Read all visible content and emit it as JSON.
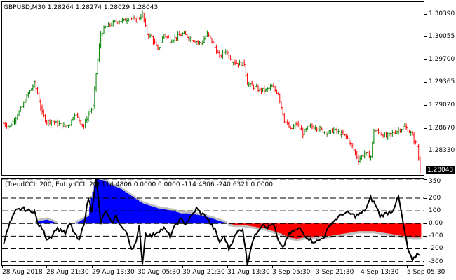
{
  "main": {
    "symbol_label": "GBPUSD,M30",
    "ohlc": "1.28264 1.28274 1.28029 1.28043",
    "current_price": "1.28043",
    "bull_color": "#008000",
    "bear_color": "#ff0000",
    "price_labels": [
      "1.30390",
      "1.30055",
      "1.29700",
      "1.29365",
      "1.29020",
      "1.28670",
      "1.28330"
    ],
    "price_levels": [
      1.3039,
      1.30055,
      1.297,
      1.29365,
      1.2902,
      1.2867,
      1.2833
    ],
    "ylim": [
      1.2797,
      1.3058
    ]
  },
  "indicator": {
    "label": "(TrendCCI: 200, Entry CCI: 20)  114.4806 0.0000 0.0000 -114.4806 -240.6321 0.0000",
    "levels_text": [
      "350",
      "200",
      "100",
      "0.00",
      "-100",
      "-200",
      "-300"
    ],
    "levels": [
      350,
      200,
      100,
      0,
      -100,
      -200,
      -300
    ],
    "ylim": [
      -330,
      355
    ],
    "up_color": "#0000ff",
    "down_color": "#ff0000",
    "line_color": "#000000"
  },
  "time_axis": {
    "labels": [
      "28 Aug 2018",
      "28 Aug 21:30",
      "29 Aug 13:30",
      "30 Aug 05:30",
      "30 Aug 21:30",
      "31 Aug 13:30",
      "3 Sep 05:30",
      "3 Sep 21:30",
      "4 Sep 13:30",
      "5 Sep 05:30"
    ]
  },
  "chart_data": {
    "type": "bar",
    "symbol": "GBPUSD",
    "timeframe": "M30",
    "x": [
      "28 Aug 2018",
      "28 Aug 21:30",
      "29 Aug 13:30",
      "30 Aug 05:30",
      "30 Aug 21:30",
      "31 Aug 13:30",
      "3 Sep 05:30",
      "3 Sep 21:30",
      "4 Sep 13:30",
      "5 Sep 05:30"
    ],
    "price_anchor_points": [
      [
        0,
        1.2875
      ],
      [
        4,
        1.287
      ],
      [
        8,
        1.2885
      ],
      [
        12,
        1.29
      ],
      [
        16,
        1.292
      ],
      [
        20,
        1.2935
      ],
      [
        22,
        1.292
      ],
      [
        25,
        1.289
      ],
      [
        28,
        1.2877
      ],
      [
        31,
        1.288
      ],
      [
        34,
        1.2875
      ],
      [
        37,
        1.2873
      ],
      [
        40,
        1.287
      ],
      [
        43,
        1.2875
      ],
      [
        46,
        1.289
      ],
      [
        49,
        1.288
      ],
      [
        52,
        1.287
      ],
      [
        55,
        1.289
      ],
      [
        58,
        1.29
      ],
      [
        60,
        1.295
      ],
      [
        63,
        1.301
      ],
      [
        66,
        1.302
      ],
      [
        70,
        1.3025
      ],
      [
        74,
        1.303
      ],
      [
        78,
        1.303
      ],
      [
        82,
        1.3035
      ],
      [
        86,
        1.303
      ],
      [
        90,
        1.304
      ],
      [
        93,
        1.301
      ],
      [
        96,
        1.3005
      ],
      [
        100,
        1.2985
      ],
      [
        104,
        1.301
      ],
      [
        108,
        1.3
      ],
      [
        112,
        1.3005
      ],
      [
        116,
        1.301
      ],
      [
        120,
        1.3005
      ],
      [
        124,
        1.3
      ],
      [
        128,
        1.2995
      ],
      [
        132,
        1.301
      ],
      [
        136,
        1.2995
      ],
      [
        140,
        1.2975
      ],
      [
        144,
        1.2985
      ],
      [
        148,
        1.297
      ],
      [
        152,
        1.2965
      ],
      [
        156,
        1.2965
      ],
      [
        158,
        1.2935
      ],
      [
        162,
        1.293
      ],
      [
        166,
        1.2925
      ],
      [
        170,
        1.2925
      ],
      [
        174,
        1.293
      ],
      [
        178,
        1.292
      ],
      [
        182,
        1.288
      ],
      [
        186,
        1.2865
      ],
      [
        190,
        1.2875
      ],
      [
        194,
        1.286
      ],
      [
        198,
        1.287
      ],
      [
        202,
        1.287
      ],
      [
        206,
        1.2865
      ],
      [
        210,
        1.286
      ],
      [
        214,
        1.2865
      ],
      [
        218,
        1.286
      ],
      [
        222,
        1.2855
      ],
      [
        226,
        1.284
      ],
      [
        230,
        1.282
      ],
      [
        234,
        1.283
      ],
      [
        238,
        1.2825
      ],
      [
        240,
        1.2865
      ],
      [
        244,
        1.286
      ],
      [
        248,
        1.2855
      ],
      [
        252,
        1.286
      ],
      [
        256,
        1.2865
      ],
      [
        260,
        1.287
      ],
      [
        264,
        1.286
      ],
      [
        268,
        1.284
      ],
      [
        270,
        1.2804
      ]
    ],
    "cci_anchor_points": [
      [
        0,
        -150
      ],
      [
        4,
        0
      ],
      [
        8,
        100
      ],
      [
        12,
        120
      ],
      [
        16,
        100
      ],
      [
        20,
        100
      ],
      [
        22,
        0
      ],
      [
        25,
        -40
      ],
      [
        28,
        -120
      ],
      [
        31,
        -100
      ],
      [
        34,
        -40
      ],
      [
        37,
        -50
      ],
      [
        40,
        -80
      ],
      [
        43,
        0
      ],
      [
        46,
        -80
      ],
      [
        49,
        -140
      ],
      [
        52,
        0
      ],
      [
        55,
        200
      ],
      [
        57,
        100
      ],
      [
        60,
        360
      ],
      [
        63,
        0
      ],
      [
        66,
        100
      ],
      [
        70,
        0
      ],
      [
        73,
        60
      ],
      [
        76,
        -20
      ],
      [
        80,
        -80
      ],
      [
        83,
        -200
      ],
      [
        86,
        -150
      ],
      [
        88,
        -20
      ],
      [
        90,
        -320
      ],
      [
        92,
        -80
      ],
      [
        96,
        -100
      ],
      [
        100,
        -60
      ],
      [
        104,
        -40
      ],
      [
        108,
        -100
      ],
      [
        112,
        0
      ],
      [
        115,
        30
      ],
      [
        118,
        0
      ],
      [
        122,
        60
      ],
      [
        125,
        120
      ],
      [
        128,
        80
      ],
      [
        131,
        60
      ],
      [
        134,
        0
      ],
      [
        137,
        -50
      ],
      [
        140,
        -150
      ],
      [
        143,
        -100
      ],
      [
        146,
        -200
      ],
      [
        149,
        -120
      ],
      [
        152,
        -60
      ],
      [
        155,
        -40
      ],
      [
        158,
        -320
      ],
      [
        161,
        -150
      ],
      [
        165,
        -50
      ],
      [
        168,
        0
      ],
      [
        171,
        -30
      ],
      [
        175,
        0
      ],
      [
        178,
        -140
      ],
      [
        181,
        -200
      ],
      [
        184,
        -100
      ],
      [
        188,
        -60
      ],
      [
        192,
        -40
      ],
      [
        196,
        -100
      ],
      [
        200,
        -140
      ],
      [
        204,
        -140
      ],
      [
        208,
        -100
      ],
      [
        212,
        0
      ],
      [
        216,
        40
      ],
      [
        220,
        80
      ],
      [
        224,
        80
      ],
      [
        228,
        60
      ],
      [
        232,
        80
      ],
      [
        235,
        120
      ],
      [
        238,
        200
      ],
      [
        241,
        150
      ],
      [
        244,
        60
      ],
      [
        248,
        80
      ],
      [
        252,
        100
      ],
      [
        256,
        210
      ],
      [
        259,
        0
      ],
      [
        262,
        -200
      ],
      [
        265,
        -300
      ],
      [
        268,
        -240
      ],
      [
        270,
        -240
      ]
    ],
    "cci_fill_anchor_points": [
      [
        0,
        0
      ],
      [
        20,
        0
      ],
      [
        23,
        20
      ],
      [
        28,
        30
      ],
      [
        35,
        0
      ],
      [
        46,
        0
      ],
      [
        50,
        20
      ],
      [
        55,
        60
      ],
      [
        57,
        200
      ],
      [
        60,
        350
      ],
      [
        65,
        340
      ],
      [
        70,
        300
      ],
      [
        75,
        280
      ],
      [
        80,
        240
      ],
      [
        85,
        200
      ],
      [
        90,
        160
      ],
      [
        95,
        140
      ],
      [
        100,
        120
      ],
      [
        105,
        110
      ],
      [
        110,
        100
      ],
      [
        115,
        80
      ],
      [
        120,
        80
      ],
      [
        125,
        70
      ],
      [
        130,
        60
      ],
      [
        135,
        40
      ],
      [
        140,
        20
      ],
      [
        145,
        0
      ],
      [
        150,
        -10
      ],
      [
        155,
        -10
      ],
      [
        160,
        -20
      ],
      [
        165,
        -30
      ],
      [
        170,
        -40
      ],
      [
        175,
        -60
      ],
      [
        180,
        -80
      ],
      [
        185,
        -110
      ],
      [
        190,
        -120
      ],
      [
        195,
        -110
      ],
      [
        200,
        -110
      ],
      [
        205,
        -100
      ],
      [
        210,
        -100
      ],
      [
        215,
        -90
      ],
      [
        220,
        -80
      ],
      [
        225,
        -70
      ],
      [
        230,
        -60
      ],
      [
        235,
        -60
      ],
      [
        240,
        -60
      ],
      [
        245,
        -70
      ],
      [
        250,
        -80
      ],
      [
        255,
        -90
      ],
      [
        260,
        -100
      ],
      [
        265,
        -110
      ],
      [
        270,
        -110
      ]
    ],
    "levels": [
      350,
      200,
      100,
      0,
      -100,
      -200,
      -300
    ]
  }
}
